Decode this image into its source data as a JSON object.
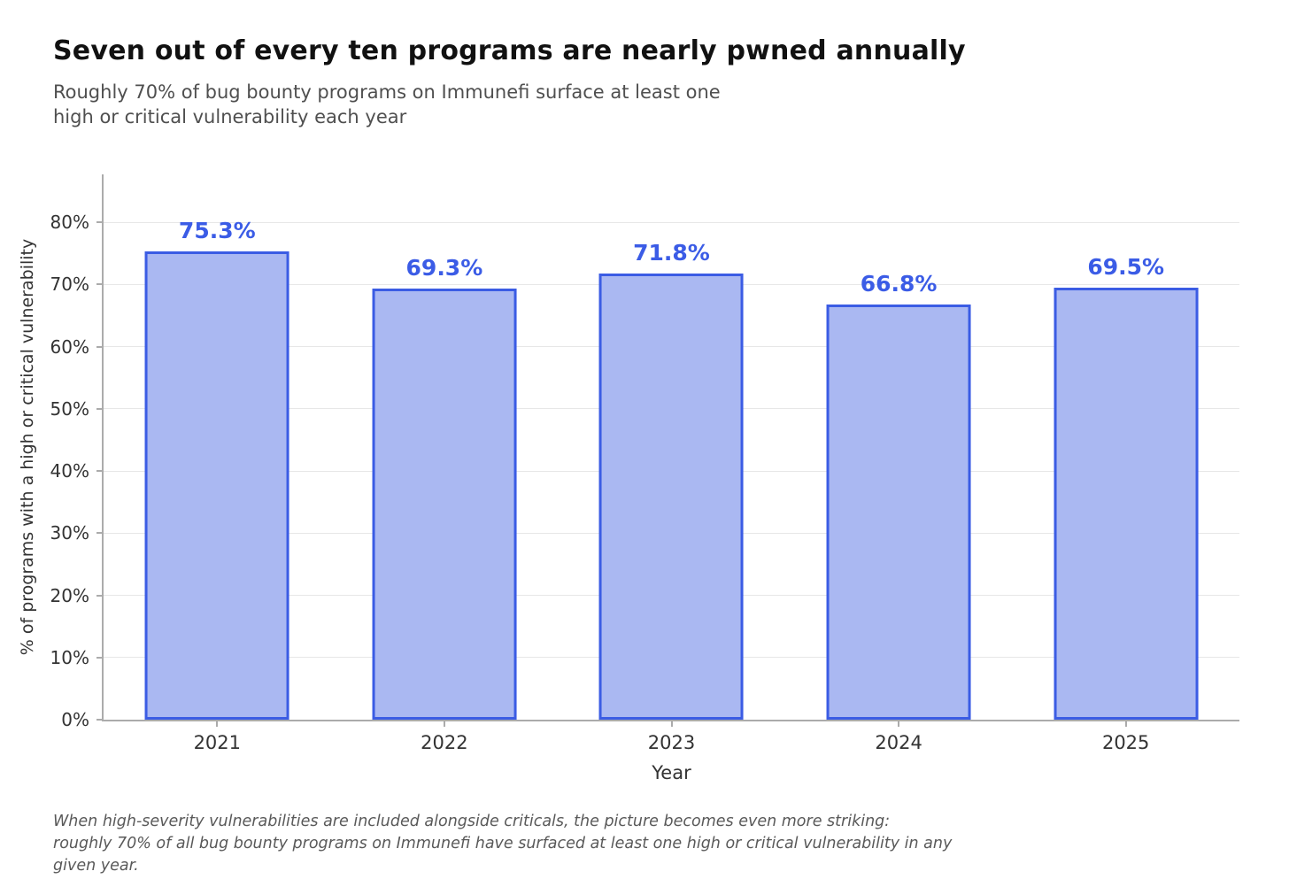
{
  "header": {
    "title": "Seven out of every ten programs are nearly pwned annually",
    "subtitle_lines": [
      "Roughly 70% of bug bounty programs on Immunefi surface at least one",
      "high or critical vulnerability each year"
    ]
  },
  "chart_data": {
    "type": "bar",
    "categories": [
      "2021",
      "2022",
      "2023",
      "2024",
      "2025"
    ],
    "values": [
      75.3,
      69.3,
      71.8,
      66.8,
      69.5
    ],
    "value_labels": [
      "75.3%",
      "69.3%",
      "71.8%",
      "66.8%",
      "69.5%"
    ],
    "title": "Seven out of every ten programs are nearly pwned annually",
    "xlabel": "Year",
    "ylabel": "% of programs with a high or critical vulnerability",
    "y_ticks": [
      {
        "value": 0,
        "label": "0%"
      },
      {
        "value": 10,
        "label": "10%"
      },
      {
        "value": 20,
        "label": "20%"
      },
      {
        "value": 30,
        "label": "30%"
      },
      {
        "value": 40,
        "label": "40%"
      },
      {
        "value": 50,
        "label": "50%"
      },
      {
        "value": 60,
        "label": "60%"
      },
      {
        "value": 70,
        "label": "70%"
      },
      {
        "value": 80,
        "label": "80%"
      }
    ],
    "ylim": [
      0,
      88
    ],
    "grid": "horizontal",
    "legend": "none",
    "colors": {
      "bar_fill": "#aab8f2",
      "bar_border": "#3b5ce4",
      "value_label": "#3b5ce6",
      "gridline": "#e7e7e7",
      "axis": "#ababab",
      "tick_label": "#333333"
    }
  },
  "footer": {
    "lines": [
      "When high-severity vulnerabilities are included alongside criticals, the picture becomes even more striking:",
      "roughly 70% of all bug bounty programs on Immunefi have surfaced at least one high or critical vulnerability in any",
      "given year."
    ]
  }
}
